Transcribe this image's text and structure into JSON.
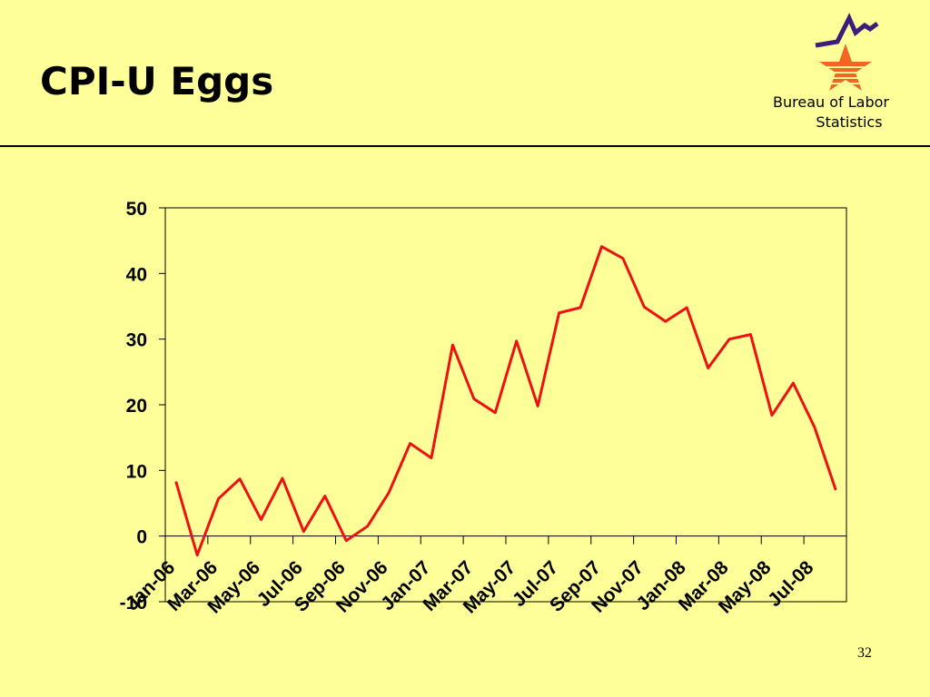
{
  "header": {
    "title": "CPI-U Eggs",
    "logo_lines": [
      "Bureau of Labor",
      "Statistics"
    ]
  },
  "chart_data": {
    "type": "line",
    "categories": [
      "Jan-06",
      null,
      "Mar-06",
      null,
      "May-06",
      null,
      "Jul-06",
      null,
      "Sep-06",
      null,
      "Nov-06",
      null,
      "Jan-07",
      null,
      "Mar-07",
      null,
      "May-07",
      null,
      "Jul-07",
      null,
      "Sep-07",
      null,
      "Nov-07",
      null,
      "Jan-08",
      null,
      "Mar-08",
      null,
      "May-08",
      null,
      "Jul-08",
      null
    ],
    "series": [
      {
        "name": "CPI-U Eggs",
        "color": "#ee1111",
        "values": [
          8.3,
          -2.9,
          5.7,
          8.7,
          2.5,
          8.8,
          0.7,
          6.1,
          -0.7,
          1.5,
          6.6,
          14.1,
          11.9,
          29.1,
          20.9,
          18.8,
          29.7,
          19.8,
          34.0,
          34.8,
          44.1,
          42.3,
          34.9,
          32.7,
          34.8,
          25.6,
          30.0,
          30.7,
          18.4,
          23.3,
          16.6,
          7.0
        ]
      }
    ],
    "ylim": [
      -10,
      50
    ],
    "yticks": [
      -10,
      0,
      10,
      20,
      30,
      40,
      50
    ]
  },
  "footer": {
    "page_number": "32"
  }
}
